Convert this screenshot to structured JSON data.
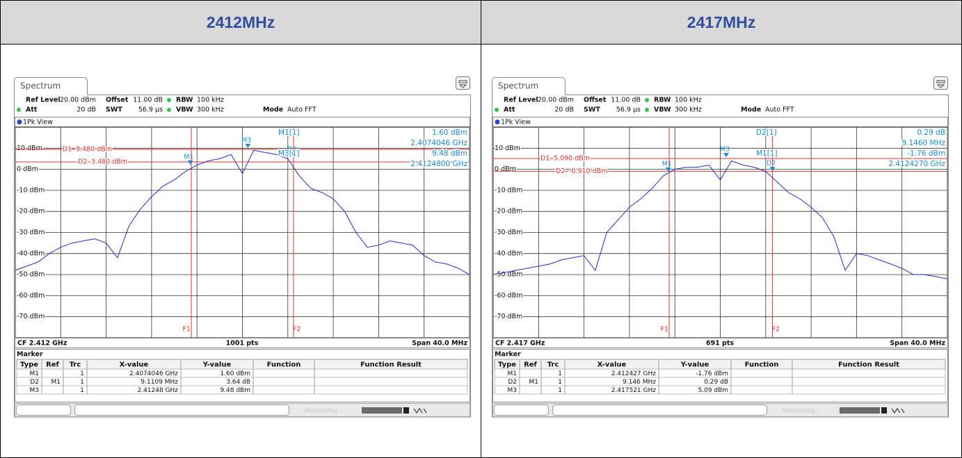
{
  "panels": [
    {
      "title": "2412MHz",
      "tab": "Spectrum",
      "settings": [
        [
          {
            "label": "Ref Level",
            "value": "20.00 dBm"
          },
          {
            "label": "Offset",
            "value": "11.00 dB"
          },
          {
            "label": "RBW",
            "value": "100 kHz"
          }
        ],
        [
          {
            "label": "Att",
            "value": "20 dB"
          },
          {
            "label": "SWT",
            "value": "56.9 µs"
          },
          {
            "label": "VBW",
            "value": "300 kHz"
          },
          {
            "label": "Mode",
            "value": "Auto FFT"
          }
        ]
      ],
      "view": "1Pk View",
      "graph": {
        "type": "line",
        "xlim": [
          2.392,
          2.432
        ],
        "ylim": [
          -80,
          20
        ],
        "xticks": [
          2.392,
          2.396,
          2.4,
          2.404,
          2.408,
          2.412,
          2.416,
          2.42,
          2.424,
          2.428,
          2.432
        ],
        "yticks": [
          {
            "value": 10,
            "label": "10 dBm"
          },
          {
            "value": 0,
            "label": "0 dBm"
          },
          {
            "value": -10,
            "label": "-10 dBm"
          },
          {
            "value": -20,
            "label": "-20 dBm"
          },
          {
            "value": -30,
            "label": "-30 dBm"
          },
          {
            "value": -40,
            "label": "-40 dBm"
          },
          {
            "value": -50,
            "label": "-50 dBm"
          },
          {
            "value": -60,
            "label": "-60 dBm"
          },
          {
            "value": -70,
            "label": "-70 dBm"
          }
        ],
        "grid": true,
        "color": "#1f2fbf",
        "x": [
          2.392,
          2.393,
          2.394,
          2.395,
          2.396,
          2.397,
          2.398,
          2.399,
          2.4,
          2.401,
          2.402,
          2.403,
          2.404,
          2.405,
          2.406,
          2.407,
          2.408,
          2.409,
          2.41,
          2.411,
          2.412,
          2.413,
          2.414,
          2.415,
          2.416,
          2.417,
          2.418,
          2.419,
          2.42,
          2.421,
          2.422,
          2.423,
          2.424,
          2.425,
          2.426,
          2.427,
          2.428,
          2.429,
          2.43,
          2.431,
          2.432
        ],
        "values": [
          -48,
          -46,
          -44,
          -40,
          -37,
          -35,
          -34,
          -33,
          -35,
          -42,
          -27,
          -19,
          -13,
          -8,
          -5,
          -1,
          2,
          4,
          5,
          7,
          -2,
          9,
          8,
          7,
          5,
          -3,
          -9,
          -11,
          -14,
          -20,
          -30,
          -37,
          -36,
          -34,
          -35,
          -36,
          -41,
          -44,
          -45,
          -47,
          -50
        ],
        "d_lines": [
          {
            "name": "D1",
            "value": 9.48,
            "value_label": "9.480 dBm"
          },
          {
            "name": "D2",
            "value": 3.48,
            "value_label": "3.480 dBm"
          }
        ],
        "f_lines": [
          {
            "name": "F1",
            "x": 2.4075
          },
          {
            "name": "F2",
            "x": 2.4165
          }
        ],
        "markers": [
          {
            "name": "M1",
            "x": 2.4074046,
            "y": 1.6
          },
          {
            "name": "M3",
            "x": 2.41248,
            "y": 9.48
          },
          {
            "name": "D2",
            "x": 2.4165,
            "y": 5.2
          }
        ],
        "readouts": [
          {
            "name": "M1[1]",
            "value": "1.60 dBm",
            "position": "2.4074046 GHz"
          },
          {
            "name": "M3[1]",
            "value": "9.48 dBm",
            "position": "2.4124800 GHz"
          }
        ]
      },
      "footer": {
        "cf": "CF 2.412 GHz",
        "points": "1001 pts",
        "span": "Span 40.0 MHz"
      },
      "marker_table": {
        "title": "Marker",
        "headers": {
          "type": "Type",
          "ref": "Ref",
          "trc": "Trc",
          "x_value": "X-value",
          "y_value": "Y-value",
          "function": "Function",
          "function_result": "Function Result"
        },
        "rows": [
          {
            "type": "M1",
            "trc": "1",
            "x_value": "2.4074046 GHz",
            "y_value": "1.60 dBm"
          },
          {
            "type": "D2",
            "ref": "M1",
            "trc": "1",
            "x_value": "9.1109 MHz",
            "y_value": "3.64 dB"
          },
          {
            "type": "M3",
            "trc": "1",
            "x_value": "2.41248 GHz",
            "y_value": "9.48 dBm"
          }
        ]
      },
      "status": "Measuring..."
    },
    {
      "title": "2417MHz",
      "tab": "Spectrum",
      "settings": [
        [
          {
            "label": "Ref Level",
            "value": "20.00 dBm"
          },
          {
            "label": "Offset",
            "value": "11.00 dB"
          },
          {
            "label": "RBW",
            "value": "100 kHz"
          }
        ],
        [
          {
            "label": "Att",
            "value": "20 dB"
          },
          {
            "label": "SWT",
            "value": "56.9 µs"
          },
          {
            "label": "VBW",
            "value": "300 kHz"
          },
          {
            "label": "Mode",
            "value": "Auto FFT"
          }
        ]
      ],
      "view": "1Pk View",
      "graph": {
        "type": "line",
        "xlim": [
          2.397,
          2.437
        ],
        "ylim": [
          -80,
          20
        ],
        "xticks": [
          2.397,
          2.401,
          2.405,
          2.409,
          2.413,
          2.417,
          2.421,
          2.425,
          2.429,
          2.433,
          2.437
        ],
        "yticks": [
          {
            "value": 10,
            "label": "10 dBm"
          },
          {
            "value": 0,
            "label": "0 dBm"
          },
          {
            "value": -10,
            "label": "-10 dBm"
          },
          {
            "value": -20,
            "label": "-20 dBm"
          },
          {
            "value": -30,
            "label": "-30 dBm"
          },
          {
            "value": -40,
            "label": "-40 dBm"
          },
          {
            "value": -50,
            "label": "-50 dBm"
          },
          {
            "value": -60,
            "label": "-60 dBm"
          },
          {
            "value": -70,
            "label": "-70 dBm"
          }
        ],
        "grid": true,
        "color": "#1f2fbf",
        "x": [
          2.397,
          2.398,
          2.399,
          2.4,
          2.401,
          2.402,
          2.403,
          2.404,
          2.405,
          2.406,
          2.407,
          2.408,
          2.409,
          2.41,
          2.411,
          2.412,
          2.413,
          2.414,
          2.415,
          2.416,
          2.417,
          2.418,
          2.419,
          2.42,
          2.421,
          2.422,
          2.423,
          2.424,
          2.425,
          2.426,
          2.427,
          2.428,
          2.429,
          2.43,
          2.431,
          2.432,
          2.433,
          2.434,
          2.435,
          2.436,
          2.437
        ],
        "values": [
          -50,
          -49,
          -48,
          -47,
          -46,
          -45,
          -43,
          -42,
          -41,
          -48,
          -30,
          -24,
          -18,
          -14,
          -9,
          -3,
          0,
          1,
          1,
          2,
          -5,
          4,
          2,
          1,
          -1,
          -6,
          -11,
          -14,
          -18,
          -23,
          -32,
          -48,
          -40,
          -41,
          -43,
          -45,
          -47,
          -50,
          -50,
          -51,
          -52
        ],
        "d_lines": [
          {
            "name": "D1",
            "value": 5.09,
            "value_label": "5.090 dBm"
          },
          {
            "name": "D2",
            "value": -0.91,
            "value_label": "-0.910 dBm"
          }
        ],
        "f_lines": [
          {
            "name": "F1",
            "x": 2.4125
          },
          {
            "name": "F2",
            "x": 2.4216
          }
        ],
        "markers": [
          {
            "name": "M1",
            "x": 2.412427,
            "y": -1.76
          },
          {
            "name": "M3",
            "x": 2.417521,
            "y": 5.09
          },
          {
            "name": "D2",
            "x": 2.4216,
            "y": -1.5
          }
        ],
        "readouts": [
          {
            "name": "D2[1]",
            "value": "0.29 dB",
            "position": "9.1460 MHz"
          },
          {
            "name": "M1[1]",
            "value": "-1.76 dBm",
            "position": "2.4124270 GHz"
          }
        ]
      },
      "footer": {
        "cf": "CF 2.417 GHz",
        "points": "691 pts",
        "span": "Span 40.0 MHz"
      },
      "marker_table": {
        "title": "Marker",
        "headers": {
          "type": "Type",
          "ref": "Ref",
          "trc": "Trc",
          "x_value": "X-value",
          "y_value": "Y-value",
          "function": "Function",
          "function_result": "Function Result"
        },
        "rows": [
          {
            "type": "M1",
            "trc": "1",
            "x_value": "2.412427 GHz",
            "y_value": "-1.76 dBm"
          },
          {
            "type": "D2",
            "ref": "M1",
            "trc": "1",
            "x_value": "9.146 MHz",
            "y_value": "0.29 dB"
          },
          {
            "type": "M3",
            "trc": "1",
            "x_value": "2.417521 GHz",
            "y_value": "5.09 dBm"
          }
        ]
      },
      "status": "Measuring..."
    }
  ]
}
